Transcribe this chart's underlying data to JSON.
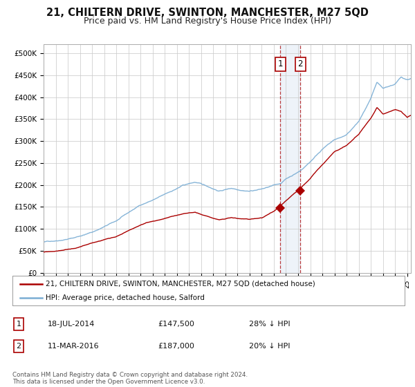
{
  "title": "21, CHILTERN DRIVE, SWINTON, MANCHESTER, M27 5QD",
  "subtitle": "Price paid vs. HM Land Registry's House Price Index (HPI)",
  "ylabel_ticks": [
    "£0",
    "£50K",
    "£100K",
    "£150K",
    "£200K",
    "£250K",
    "£300K",
    "£350K",
    "£400K",
    "£450K",
    "£500K"
  ],
  "ytick_values": [
    0,
    50000,
    100000,
    150000,
    200000,
    250000,
    300000,
    350000,
    400000,
    450000,
    500000
  ],
  "ylim": [
    0,
    520000
  ],
  "xlim_start": 1995.0,
  "xlim_end": 2025.3,
  "background_color": "#ffffff",
  "grid_color": "#cccccc",
  "hpi_color": "#7aadd4",
  "price_color": "#aa0000",
  "sale1_date": 2014.54,
  "sale1_price": 147500,
  "sale2_date": 2016.19,
  "sale2_price": 187000,
  "legend_line1": "21, CHILTERN DRIVE, SWINTON, MANCHESTER, M27 5QD (detached house)",
  "legend_line2": "HPI: Average price, detached house, Salford",
  "table_row1": [
    "1",
    "18-JUL-2014",
    "£147,500",
    "28% ↓ HPI"
  ],
  "table_row2": [
    "2",
    "11-MAR-2016",
    "£187,000",
    "20% ↓ HPI"
  ],
  "footnote": "Contains HM Land Registry data © Crown copyright and database right 2024.\nThis data is licensed under the Open Government Licence v3.0.",
  "title_fontsize": 10.5,
  "subtitle_fontsize": 9
}
